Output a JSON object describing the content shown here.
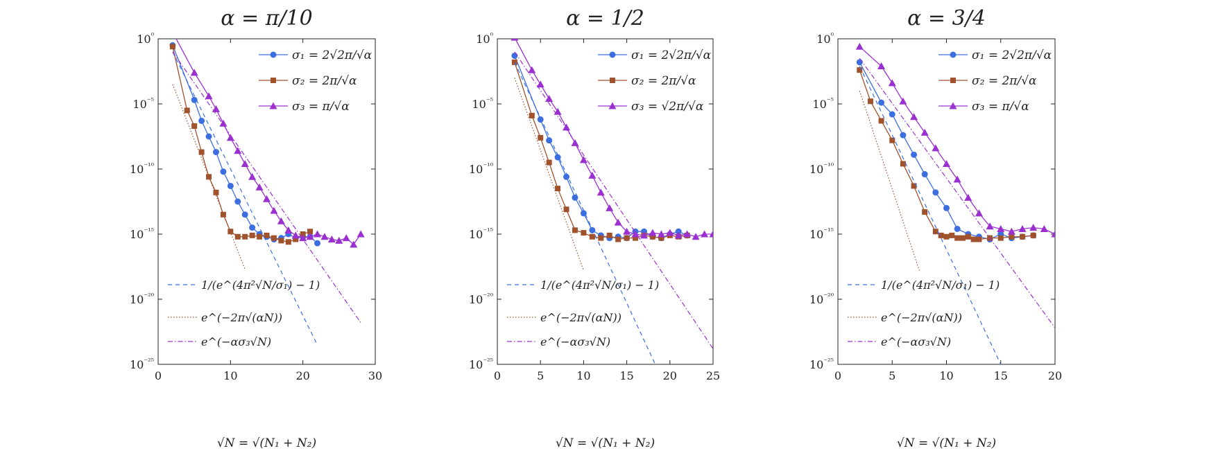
{
  "colors": {
    "sigma1": "#3c6ee0",
    "sigma2": "#a0522d",
    "sigma3": "#9b30d0",
    "axis": "#222222"
  },
  "x_label": "√N = √(N₁ + N₂)",
  "panels": [
    {
      "title": "α = π/10",
      "chart_data": {
        "type": "line",
        "title": "α = π/10",
        "xlabel": "√N = √(N₁ + N₂)",
        "ylabel": "",
        "yscale": "log",
        "xlim": [
          0,
          30
        ],
        "ylim": [
          1e-25,
          1
        ],
        "x_ticks": [
          "0",
          "10",
          "20",
          "30"
        ],
        "y_ticks": [
          "10⁰",
          "10⁻⁵",
          "10⁻¹⁰",
          "10⁻¹⁵",
          "10⁻²⁰",
          "10⁻²⁵"
        ],
        "legend_top": [
          "σ₁ = 2√2π/√α",
          "σ₂ = 2π/√α",
          "σ₃ = π/√α"
        ],
        "legend_bottom": [
          "1/(e^(4π²√N/σ₁) − 1)",
          "e^(−2π√(αN))",
          "e^(−ασ₃√N)"
        ],
        "series": [
          {
            "name": "σ₁ = 2√2π/√α",
            "marker": "circle",
            "x": [
              2,
              5,
              6,
              7,
              8,
              9,
              10,
              11,
              12,
              13,
              14,
              15,
              16,
              17,
              18,
              19,
              20,
              21,
              22
            ],
            "y": [
              -0.5,
              -4.7,
              -6.3,
              -7.5,
              -8.7,
              -10.2,
              -11.3,
              -12.5,
              -13.5,
              -14.5,
              -15.0,
              -15.2,
              -15.4,
              -15.3,
              -15.0,
              -15.3,
              -15.2,
              -15.2,
              -15.7
            ]
          },
          {
            "name": "σ₂ = 2π/√α",
            "marker": "square",
            "x": [
              2,
              4,
              5,
              6,
              7,
              8,
              9,
              10,
              11,
              12,
              13,
              14,
              15,
              16,
              17,
              18,
              19,
              20,
              21
            ],
            "y": [
              -0.6,
              -5.5,
              -6.7,
              -8.7,
              -10.6,
              -11.8,
              -13.5,
              -14.8,
              -15.2,
              -15.2,
              -15.1,
              -15.2,
              -15.1,
              -15.3,
              -15.5,
              -15.6,
              -15.4,
              -15.0,
              -14.8
            ]
          },
          {
            "name": "σ₃ = π/√α",
            "marker": "triangle",
            "x": [
              2,
              5,
              7,
              8,
              9,
              10,
              11,
              12,
              13,
              14,
              15,
              16,
              17,
              18,
              19,
              20,
              21,
              22,
              23,
              24,
              25,
              26,
              27,
              28
            ],
            "y": [
              0.5,
              -2.6,
              -4.4,
              -5.4,
              -6.5,
              -7.6,
              -8.6,
              -9.6,
              -10.6,
              -11.4,
              -12.3,
              -13.2,
              -14.0,
              -14.7,
              -15.1,
              -15.3,
              -15.2,
              -15.0,
              -15.2,
              -15.4,
              -15.5,
              -15.3,
              -15.8,
              -15.0
            ]
          },
          {
            "name": "1/(e^(4π²√N/σ₁) − 1)",
            "style": "dashed",
            "x": [
              2,
              22
            ],
            "y": [
              -1,
              -23.5
            ]
          },
          {
            "name": "e^(−2π√(αN))",
            "style": "dotted",
            "x": [
              2,
              12
            ],
            "y": [
              -3.5,
              -17.7
            ]
          },
          {
            "name": "e^(−ασ₃√N)",
            "style": "dashdot",
            "x": [
              2,
              28
            ],
            "y": [
              -1,
              -21.8
            ]
          }
        ]
      }
    },
    {
      "title": "α = 1/2",
      "chart_data": {
        "type": "line",
        "title": "α = 1/2",
        "xlabel": "√N = √(N₁ + N₂)",
        "ylabel": "",
        "yscale": "log",
        "xlim": [
          0,
          25
        ],
        "ylim": [
          1e-25,
          1
        ],
        "x_ticks": [
          "0",
          "5",
          "10",
          "15",
          "20",
          "25"
        ],
        "y_ticks": [
          "10⁰",
          "10⁻⁵",
          "10⁻¹⁰",
          "10⁻¹⁵",
          "10⁻²⁰",
          "10⁻²⁵"
        ],
        "legend_top": [
          "σ₁ = 2√2π/√α",
          "σ₂ = 2π/√α",
          "σ₃ = √2π/√α"
        ],
        "legend_bottom": [
          "1/(e^(4π²√N/σ₁) − 1)",
          "e^(−2π√(αN))",
          "e^(−ασ₃√N)"
        ],
        "series": [
          {
            "name": "σ₁ = 2√2π/√α",
            "marker": "circle",
            "x": [
              2,
              5,
              6,
              7,
              8,
              9,
              10,
              11,
              12,
              13,
              14,
              15,
              16,
              17,
              18,
              19,
              20,
              21,
              22
            ],
            "y": [
              -1.3,
              -6.2,
              -7.8,
              -9.1,
              -10.6,
              -12.2,
              -13.4,
              -14.7,
              -15.1,
              -15.3,
              -15.2,
              -15.3,
              -14.8,
              -14.8,
              -15.2,
              -15.3,
              -15.0,
              -14.8,
              -15.1
            ]
          },
          {
            "name": "σ₂ = 2π/√α",
            "marker": "square",
            "x": [
              2,
              4,
              5,
              6,
              7,
              8,
              9,
              10,
              11,
              12,
              13,
              14,
              15,
              16,
              17,
              18,
              19,
              20,
              21,
              22
            ],
            "y": [
              -1.8,
              -5.9,
              -7.6,
              -9.5,
              -11.5,
              -13.1,
              -14.7,
              -14.9,
              -15.2,
              -15.3,
              -15.1,
              -15.4,
              -15.3,
              -15.3,
              -15.1,
              -15.2,
              -15.3,
              -15.1,
              -15.2,
              -15.1
            ]
          },
          {
            "name": "σ₃ = √2π/√α",
            "marker": "triangle",
            "x": [
              2,
              4,
              5,
              6,
              7,
              8,
              9,
              10,
              11,
              12,
              13,
              14,
              15,
              16,
              17,
              18,
              19,
              20,
              21,
              22,
              23,
              24,
              25
            ],
            "y": [
              0.1,
              -2.4,
              -3.5,
              -4.6,
              -5.6,
              -6.8,
              -8.0,
              -9.3,
              -10.5,
              -11.8,
              -13.0,
              -14.1,
              -14.8,
              -15.0,
              -15.1,
              -14.9,
              -15.0,
              -14.9,
              -15.1,
              -15.0,
              -15.2,
              -15.0,
              -15.0
            ]
          },
          {
            "name": "1/(e^(4π²√N/σ₁) − 1)",
            "style": "dashed",
            "x": [
              2,
              18.3
            ],
            "y": [
              -1.8,
              -25
            ]
          },
          {
            "name": "e^(−2π√(αN))",
            "style": "dotted",
            "x": [
              2,
              10
            ],
            "y": [
              -3.0,
              -17.8
            ]
          },
          {
            "name": "e^(−ασ₃√N)",
            "style": "dashdot",
            "x": [
              2,
              25
            ],
            "y": [
              -1,
              -23.8
            ]
          }
        ]
      }
    },
    {
      "title": "α = 3/4",
      "chart_data": {
        "type": "line",
        "title": "α = 3/4",
        "xlabel": "√N = √(N₁ + N₂)",
        "ylabel": "",
        "yscale": "log",
        "xlim": [
          0,
          20
        ],
        "ylim": [
          1e-25,
          1
        ],
        "x_ticks": [
          "0",
          "5",
          "10",
          "15",
          "20"
        ],
        "y_ticks": [
          "10⁰",
          "10⁻⁵",
          "10⁻¹⁰",
          "10⁻¹⁵",
          "10⁻²⁰",
          "10⁻²⁵"
        ],
        "legend_top": [
          "σ₁ = 2√2π/√α",
          "σ₂ = 2π/√α",
          "σ₃ = π/√α"
        ],
        "legend_bottom": [
          "1/(e^(4π²√N/σ₁) − 1)",
          "e^(−2π√(αN))",
          "e^(−ασ₃√N)"
        ],
        "series": [
          {
            "name": "σ₁ = 2√2π/√α",
            "marker": "circle",
            "x": [
              2,
              4,
              5,
              6,
              7,
              8,
              9,
              10,
              11,
              12,
              13,
              14,
              15,
              16,
              17,
              18
            ],
            "y": [
              -1.8,
              -4.9,
              -5.8,
              -7.4,
              -8.9,
              -10.4,
              -11.8,
              -13.0,
              -14.6,
              -15.0,
              -15.2,
              -15.4,
              -15.0,
              -15.3,
              -15.2,
              -15.1
            ]
          },
          {
            "name": "σ₂ = 2π/√α",
            "marker": "square",
            "x": [
              2,
              3,
              4,
              5,
              6,
              7,
              8,
              9,
              9.5,
              10,
              10.5,
              11,
              11.5,
              12,
              12.5,
              13,
              14,
              15,
              16,
              17,
              18
            ],
            "y": [
              -2.4,
              -4.8,
              -6.3,
              -7.8,
              -9.6,
              -11.3,
              -13.3,
              -14.8,
              -15.1,
              -15.2,
              -15.1,
              -15.3,
              -15.3,
              -15.2,
              -15.4,
              -15.4,
              -15.3,
              -15.3,
              -15.2,
              -15.2,
              -15.1
            ]
          },
          {
            "name": "σ₃ = π/√α",
            "marker": "triangle",
            "x": [
              2,
              4,
              5,
              6,
              7,
              8,
              9,
              10,
              11,
              12,
              13,
              14,
              15,
              16,
              17,
              18,
              19,
              20
            ],
            "y": [
              -0.6,
              -2.1,
              -3.4,
              -4.8,
              -6.0,
              -7.2,
              -8.4,
              -9.6,
              -10.8,
              -12.2,
              -13.4,
              -14.4,
              -14.6,
              -14.8,
              -14.6,
              -14.5,
              -14.6,
              -15.0
            ]
          },
          {
            "name": "1/(e^(4π²√N/σ₁) − 1)",
            "style": "dashed",
            "x": [
              2,
              15
            ],
            "y": [
              -2.1,
              -25
            ]
          },
          {
            "name": "e^(−2π√(αN))",
            "style": "dotted",
            "x": [
              2,
              7.5
            ],
            "y": [
              -4.0,
              -17.8
            ]
          },
          {
            "name": "e^(−ασ₃√N)",
            "style": "dashdot",
            "x": [
              2,
              20
            ],
            "y": [
              -1.5,
              -22.2
            ]
          }
        ]
      }
    }
  ]
}
